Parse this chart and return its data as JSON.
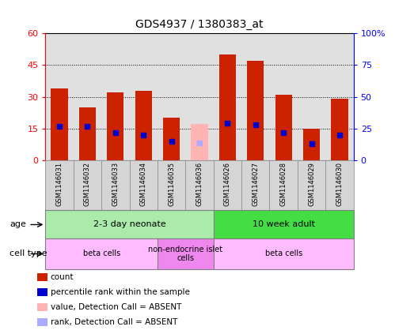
{
  "title": "GDS4937 / 1380383_at",
  "samples": [
    "GSM1146031",
    "GSM1146032",
    "GSM1146033",
    "GSM1146034",
    "GSM1146035",
    "GSM1146036",
    "GSM1146026",
    "GSM1146027",
    "GSM1146028",
    "GSM1146029",
    "GSM1146030"
  ],
  "counts": [
    34,
    25,
    32,
    33,
    20,
    null,
    50,
    47,
    31,
    15,
    29
  ],
  "absent_values": [
    null,
    null,
    null,
    null,
    null,
    17,
    null,
    null,
    null,
    null,
    null
  ],
  "percentile_ranks": [
    27,
    27,
    22,
    20,
    15,
    null,
    29,
    28,
    22,
    13,
    20
  ],
  "absent_ranks": [
    null,
    null,
    null,
    null,
    null,
    14,
    null,
    null,
    null,
    null,
    null
  ],
  "bar_color": "#cc2200",
  "absent_bar_color": "#ffb3b3",
  "rank_color": "#0000cc",
  "absent_rank_color": "#aaaaff",
  "age_groups": [
    {
      "label": "2-3 day neonate",
      "start": 0,
      "end": 6,
      "color": "#aaeaaa"
    },
    {
      "label": "10 week adult",
      "start": 6,
      "end": 11,
      "color": "#44dd44"
    }
  ],
  "cell_type_groups": [
    {
      "label": "beta cells",
      "start": 0,
      "end": 4,
      "color": "#ffbbff"
    },
    {
      "label": "non-endocrine islet\ncells",
      "start": 4,
      "end": 6,
      "color": "#ee88ee"
    },
    {
      "label": "beta cells",
      "start": 6,
      "end": 11,
      "color": "#ffbbff"
    }
  ],
  "legend_items": [
    {
      "label": "count",
      "color": "#cc2200"
    },
    {
      "label": "percentile rank within the sample",
      "color": "#0000cc"
    },
    {
      "label": "value, Detection Call = ABSENT",
      "color": "#ffb3b3"
    },
    {
      "label": "rank, Detection Call = ABSENT",
      "color": "#aaaaff"
    }
  ]
}
